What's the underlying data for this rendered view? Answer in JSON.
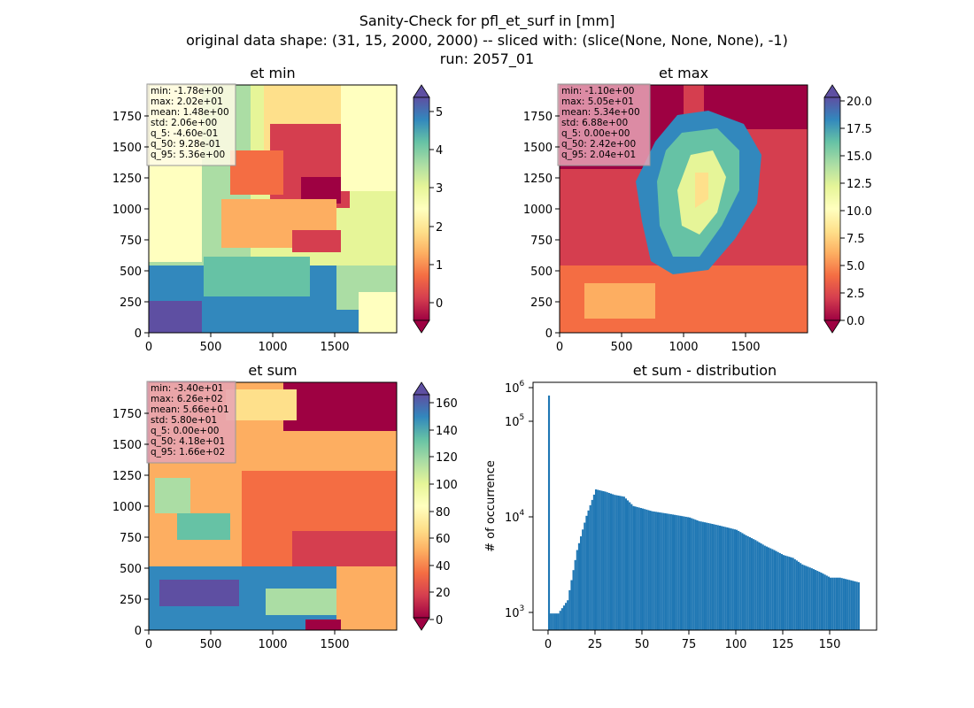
{
  "suptitle": {
    "line1": "Sanity-Check for pfl_et_surf in [mm]",
    "line2": "original data shape: (31, 15, 2000, 2000) -- sliced with: (slice(None, None, None), -1)",
    "line3": "run: 2057_01"
  },
  "colors": {
    "hist_bar": "#1f77b4",
    "stats_box_light": "#fffbe6",
    "stats_box_pink": "#e6a3b5",
    "spectral": [
      "#9e0142",
      "#d53e4f",
      "#f46d43",
      "#fdae61",
      "#fee08b",
      "#ffffbf",
      "#e6f598",
      "#abdda4",
      "#66c2a5",
      "#3288bd",
      "#5e4fa2"
    ]
  },
  "chart_data": [
    {
      "type": "heatmap",
      "title": "et min",
      "colormap": "Spectral",
      "x_ticks": [
        "0",
        "500",
        "1000",
        "1500"
      ],
      "y_ticks": [
        "0",
        "250",
        "500",
        "750",
        "1000",
        "1250",
        "1500",
        "1750"
      ],
      "xlim": [
        0,
        2000
      ],
      "ylim": [
        0,
        2000
      ],
      "colorbar": {
        "min": -0.6,
        "max": 5.4,
        "ticks": [
          "0",
          "1",
          "2",
          "3",
          "4",
          "5"
        ],
        "extend": "both"
      },
      "stats": [
        "min: -1.78e+00",
        "max: 2.02e+01",
        "mean: 1.48e+00",
        "std: 2.06e+00",
        "q_5: -4.60e-01",
        "q_50: 9.28e-01",
        "q_95: 5.36e+00"
      ]
    },
    {
      "type": "heatmap",
      "title": "et max",
      "colormap": "Spectral",
      "x_ticks": [
        "0",
        "500",
        "1000",
        "1500"
      ],
      "y_ticks": [
        "0",
        "250",
        "500",
        "750",
        "1000",
        "1250",
        "1500",
        "1750"
      ],
      "xlim": [
        0,
        2000
      ],
      "ylim": [
        0,
        2000
      ],
      "colorbar": {
        "min": 0,
        "max": 20.4,
        "ticks": [
          "0.0",
          "2.5",
          "5.0",
          "7.5",
          "10.0",
          "12.5",
          "15.0",
          "17.5",
          "20.0"
        ],
        "extend": "both"
      },
      "stats": [
        "min: -1.10e+00",
        "max: 5.05e+01",
        "mean: 5.34e+00",
        "std: 6.88e+00",
        "q_5: 0.00e+00",
        "q_50: 2.42e+00",
        "q_95: 2.04e+01"
      ]
    },
    {
      "type": "heatmap",
      "title": "et sum",
      "colormap": "Spectral",
      "x_ticks": [
        "0",
        "500",
        "1000",
        "1500"
      ],
      "y_ticks": [
        "0",
        "250",
        "500",
        "750",
        "1000",
        "1250",
        "1500",
        "1750"
      ],
      "xlim": [
        0,
        2000
      ],
      "ylim": [
        0,
        2000
      ],
      "colorbar": {
        "min": -5,
        "max": 170,
        "ticks": [
          "0",
          "20",
          "40",
          "60",
          "80",
          "100",
          "120",
          "140",
          "160"
        ],
        "extend": "both"
      },
      "stats": [
        "min: -3.40e+01",
        "max: 6.26e+02",
        "mean: 5.66e+01",
        "std: 5.80e+01",
        "q_5: 0.00e+00",
        "q_50: 4.18e+01",
        "q_95: 1.66e+02"
      ]
    },
    {
      "type": "bar",
      "title": "et sum - distribution",
      "ylabel": "# of occurrence",
      "xlabel": "",
      "yscale": "log",
      "ylim": [
        600,
        1200000
      ],
      "xlim": [
        -8,
        175
      ],
      "x_ticks": [
        "0",
        "25",
        "50",
        "75",
        "100",
        "125",
        "150"
      ],
      "y_ticks": [
        "10^3",
        "10^4",
        "10^5",
        "10^6"
      ],
      "bin_width": 1,
      "x": [
        0,
        5,
        10,
        15,
        20,
        25,
        30,
        35,
        40,
        45,
        50,
        55,
        60,
        65,
        70,
        75,
        80,
        85,
        90,
        95,
        100,
        105,
        110,
        115,
        120,
        125,
        130,
        135,
        140,
        145,
        150,
        155,
        160,
        165
      ],
      "values": [
        800000,
        1000,
        1500,
        7000,
        20000,
        45000,
        42000,
        38000,
        36000,
        27000,
        25000,
        23000,
        22000,
        21000,
        20000,
        19000,
        17000,
        16000,
        15000,
        14000,
        13000,
        11000,
        9500,
        8000,
        7000,
        6000,
        5500,
        4500,
        4000,
        3500,
        3000,
        3000,
        2800,
        2600
      ]
    }
  ]
}
